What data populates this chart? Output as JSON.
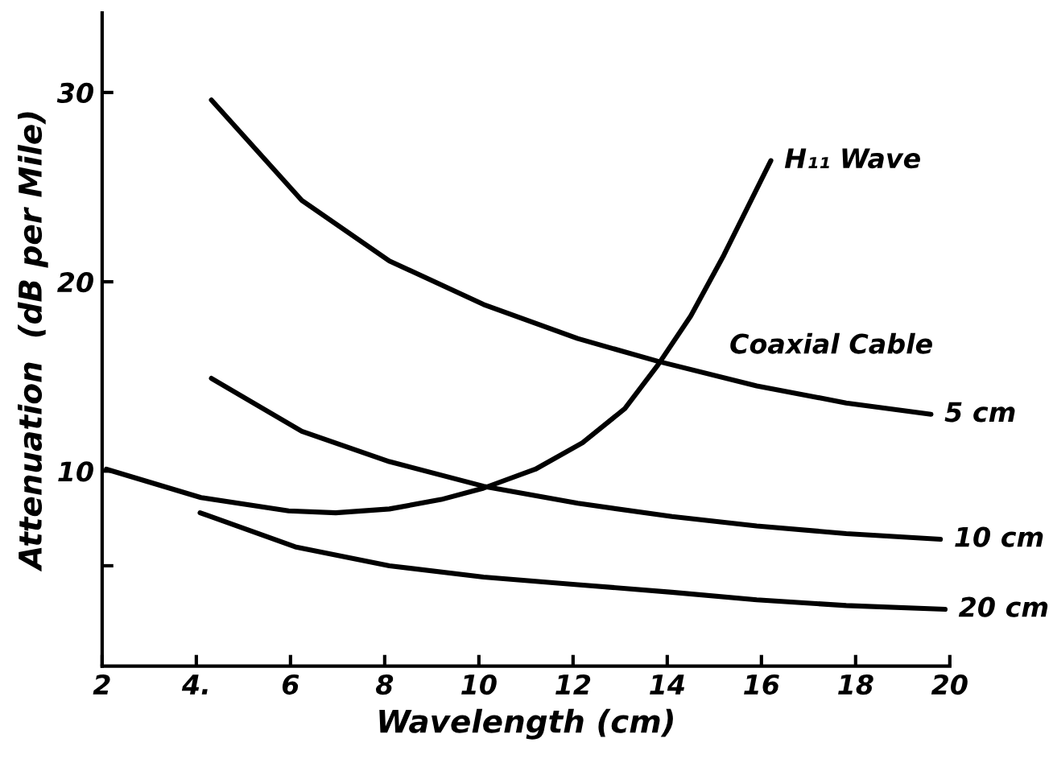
{
  "chart_data": {
    "type": "line",
    "xlabel": "Wavelength (cm)",
    "ylabel": "Attenuation  (dB per Mile)",
    "xlim": [
      2,
      20
    ],
    "ylim": [
      -0.3,
      34.2
    ],
    "xticks": [
      2,
      {
        "value": 4,
        "label": "4."
      },
      6,
      8,
      10,
      12,
      14,
      16,
      18,
      20
    ],
    "yticks": [
      {
        "value": 5,
        "label": null
      },
      10,
      20,
      30
    ],
    "grid": false,
    "legend": false,
    "marker": "none",
    "line_style": "solid",
    "annotations": [
      "Coaxial Cable"
    ],
    "series": [
      {
        "name": "5 cm",
        "color": "#000000",
        "x": [
          4.32,
          6.24,
          8.1,
          10.1,
          12.1,
          13.8,
          15.9,
          17.8,
          19.6
        ],
        "values": [
          29.6,
          24.3,
          21.1,
          18.8,
          17.0,
          15.8,
          14.5,
          13.6,
          13.0
        ]
      },
      {
        "name": "10 cm",
        "color": "#000000",
        "x": [
          4.32,
          6.24,
          8.1,
          10.1,
          12.1,
          14.1,
          15.9,
          17.8,
          19.8
        ],
        "values": [
          14.9,
          12.1,
          10.5,
          9.2,
          8.3,
          7.6,
          7.1,
          6.7,
          6.4
        ]
      },
      {
        "name": "20 cm",
        "color": "#000000",
        "x": [
          4.08,
          6.1,
          8.1,
          10.1,
          12.1,
          14.1,
          15.9,
          17.8,
          19.9
        ],
        "values": [
          7.8,
          6.0,
          5.0,
          4.4,
          4.0,
          3.6,
          3.2,
          2.9,
          2.7
        ]
      },
      {
        "name": "H₁₁ Wave",
        "color": "#000000",
        "x": [
          2.09,
          4.1,
          5.96,
          6.96,
          8.1,
          9.2,
          10.1,
          11.2,
          12.2,
          13.1,
          13.8,
          14.5,
          15.2,
          16.2
        ],
        "values": [
          10.1,
          8.6,
          7.9,
          7.8,
          8.0,
          8.5,
          9.1,
          10.1,
          11.5,
          13.3,
          15.6,
          18.2,
          21.4,
          26.4
        ]
      }
    ]
  }
}
